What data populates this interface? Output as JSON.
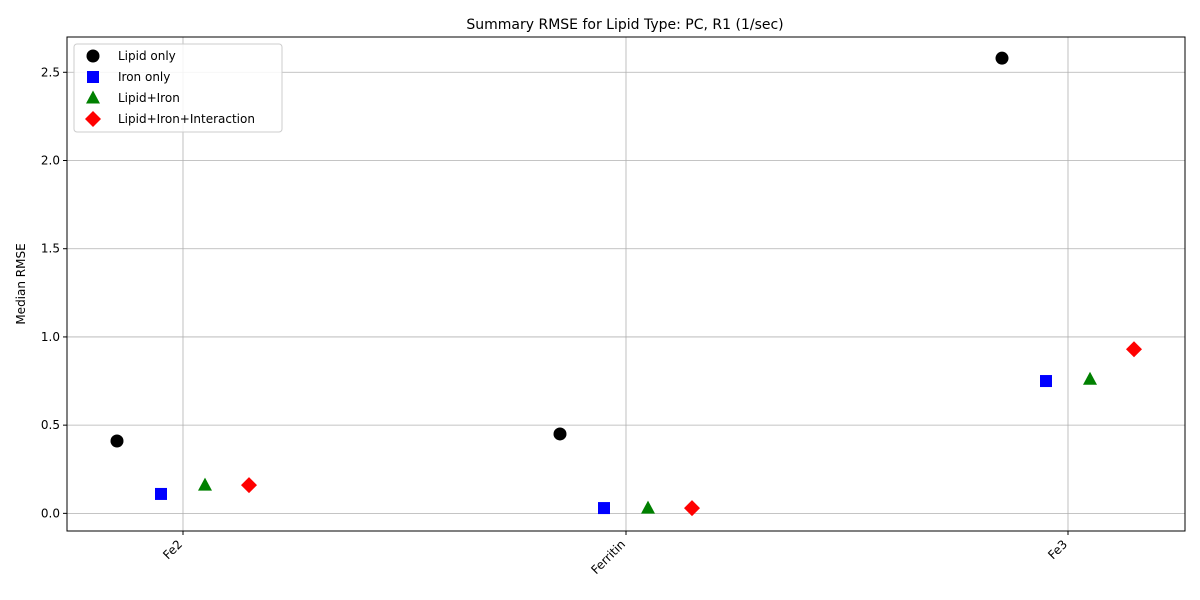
{
  "chart_data": {
    "type": "scatter",
    "title": "Summary RMSE for Lipid Type: PC, R1 (1/sec)",
    "xlabel": "",
    "ylabel": "Median RMSE",
    "categories": [
      "Fe2",
      "Ferritin",
      "Fe3"
    ],
    "ylim": [
      -0.1,
      2.7
    ],
    "yticks": [
      0.0,
      0.5,
      1.0,
      1.5,
      2.0,
      2.5
    ],
    "ytick_labels": [
      "0.0",
      "0.5",
      "1.0",
      "1.5",
      "2.0",
      "2.5"
    ],
    "grid": true,
    "legend_position": "top-left",
    "series": [
      {
        "name": "Lipid only",
        "marker": "circle",
        "color": "#000000",
        "values": [
          0.41,
          0.45,
          2.58
        ]
      },
      {
        "name": "Iron only",
        "marker": "square",
        "color": "#0000ff",
        "values": [
          0.11,
          0.03,
          0.75
        ]
      },
      {
        "name": "Lipid+Iron",
        "marker": "triangle",
        "color": "#008000",
        "values": [
          0.16,
          0.03,
          0.76
        ]
      },
      {
        "name": "Lipid+Iron+Interaction",
        "marker": "diamond",
        "color": "#ff0000",
        "values": [
          0.16,
          0.03,
          0.93
        ]
      }
    ]
  }
}
